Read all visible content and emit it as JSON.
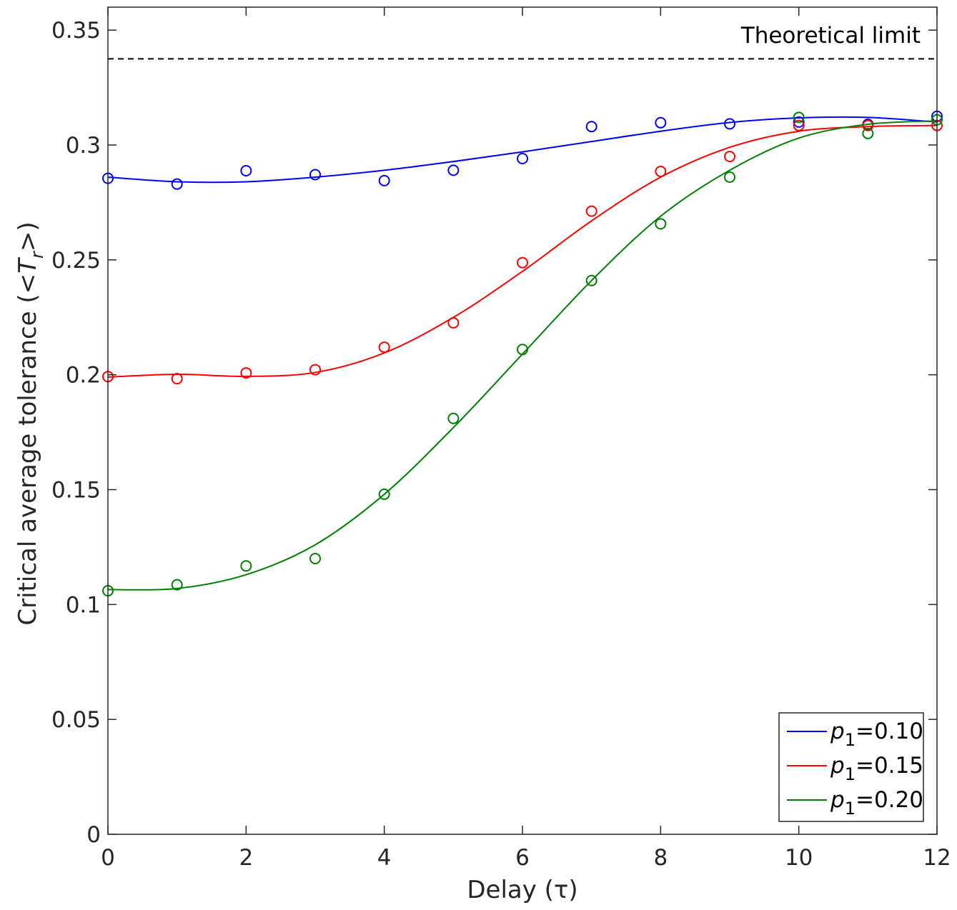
{
  "chart_data": {
    "type": "scatter",
    "title": "",
    "xlabel": "Delay (τ)",
    "ylabel": "Critical average tolerance (<Tr>)",
    "ylabel_parts": {
      "pre": "Critical average tolerance (<",
      "var": "T",
      "sub": "r",
      "post": ">)"
    },
    "xlim": [
      0,
      12
    ],
    "ylim": [
      0,
      0.36
    ],
    "x_ticks": [
      0,
      2,
      4,
      6,
      8,
      10,
      12
    ],
    "x_tick_labels": [
      "0",
      "2",
      "4",
      "6",
      "8",
      "10",
      "12"
    ],
    "y_ticks": [
      0,
      0.05,
      0.1,
      0.15,
      0.2,
      0.25,
      0.3,
      0.35
    ],
    "y_tick_labels": [
      "0",
      "0.05",
      "0.1",
      "0.15",
      "0.2",
      "0.25",
      "0.3",
      "0.35"
    ],
    "grid": false,
    "legend_position": "bottom-right",
    "reference_line": {
      "label": "Theoretical limit",
      "y": 0.3375,
      "color": "#000000",
      "style": "dashed"
    },
    "x": [
      0,
      1,
      2,
      3,
      4,
      5,
      6,
      7,
      8,
      9,
      10,
      11,
      12
    ],
    "series": [
      {
        "name": "p1=0.10",
        "label_var": "p",
        "label_sub": "1",
        "label_value": "=0.10",
        "color": "#0000ff",
        "points": [
          0.2855,
          0.283,
          0.2888,
          0.2871,
          0.2845,
          0.289,
          0.2941,
          0.308,
          0.3097,
          0.3092,
          0.31,
          0.309,
          0.3125
        ],
        "fit": [
          0.286,
          0.284,
          0.284,
          0.286,
          0.289,
          0.2928,
          0.297,
          0.3015,
          0.306,
          0.3098,
          0.3118,
          0.312,
          0.31
        ]
      },
      {
        "name": "p1=0.15",
        "label_var": "p",
        "label_sub": "1",
        "label_value": "=0.15",
        "color": "#ff0000",
        "points": [
          0.1992,
          0.1983,
          0.2008,
          0.2022,
          0.212,
          0.2226,
          0.2488,
          0.2712,
          0.2885,
          0.295,
          0.3085,
          0.3085,
          0.3085
        ],
        "fit": [
          0.199,
          0.2002,
          0.1993,
          0.201,
          0.2095,
          0.225,
          0.245,
          0.267,
          0.286,
          0.299,
          0.306,
          0.308,
          0.3085
        ]
      },
      {
        "name": "p1=0.20",
        "label_var": "p",
        "label_sub": "1",
        "label_value": "=0.20",
        "color": "#008000",
        "points": [
          0.106,
          0.1086,
          0.1168,
          0.12,
          0.148,
          0.181,
          0.211,
          0.241,
          0.2657,
          0.286,
          0.312,
          0.305,
          0.311
        ],
        "fit": [
          0.1065,
          0.107,
          0.113,
          0.126,
          0.148,
          0.177,
          0.209,
          0.241,
          0.269,
          0.289,
          0.303,
          0.309,
          0.3105
        ]
      }
    ]
  }
}
